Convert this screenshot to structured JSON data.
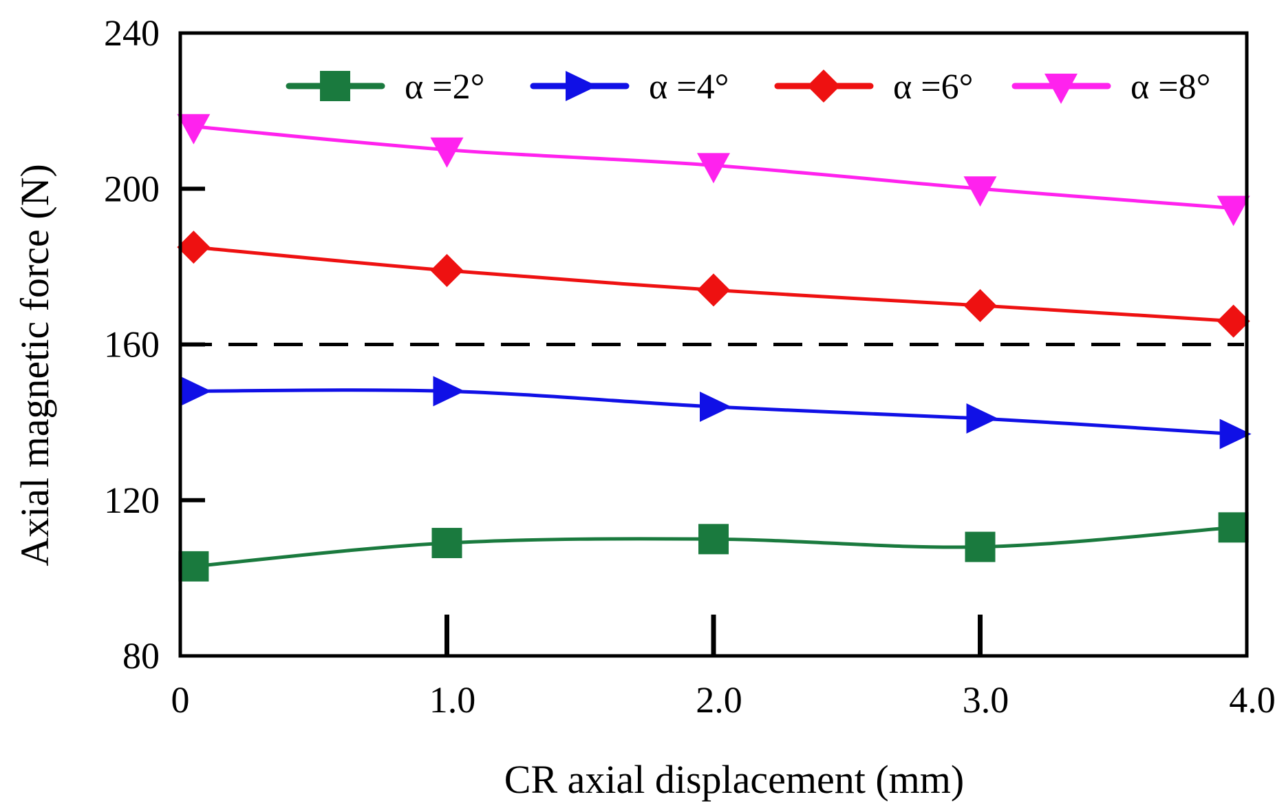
{
  "chart_data": {
    "type": "line",
    "title": "",
    "xlabel": "CR axial displacement  (mm)",
    "ylabel": "Axial magnetic force  (N)",
    "xlim": [
      0,
      4.0
    ],
    "ylim": [
      80,
      240
    ],
    "x_ticks": [
      0,
      1.0,
      2.0,
      3.0,
      4.0
    ],
    "x_tick_labels": [
      "0",
      "1.0",
      "2.0",
      "3.0",
      "4.0"
    ],
    "y_ticks": [
      80,
      120,
      160,
      200,
      240
    ],
    "y_tick_labels": [
      "80",
      "120",
      "160",
      "200",
      "240"
    ],
    "grid": false,
    "legend_position": "top",
    "reference_line": {
      "y": 160,
      "style": "dashed"
    },
    "series": [
      {
        "name": "α =2°",
        "color": "#1a7a3e",
        "marker": "square",
        "x": [
          0.05,
          1.0,
          2.0,
          3.0,
          3.95
        ],
        "values": [
          103,
          109,
          110,
          108,
          113
        ]
      },
      {
        "name": "α =4°",
        "color": "#1010e6",
        "marker": "triangle-right",
        "x": [
          0.05,
          1.0,
          2.0,
          3.0,
          3.95
        ],
        "values": [
          148,
          148,
          144,
          141,
          137
        ]
      },
      {
        "name": "α =6°",
        "color": "#ee1111",
        "marker": "diamond",
        "x": [
          0.05,
          1.0,
          2.0,
          3.0,
          3.95
        ],
        "values": [
          185,
          179,
          174,
          170,
          166
        ]
      },
      {
        "name": "α =8°",
        "color": "#ff22ee",
        "marker": "triangle-down",
        "x": [
          0.05,
          1.0,
          2.0,
          3.0,
          3.95
        ],
        "values": [
          216,
          210,
          206,
          200,
          195
        ]
      }
    ]
  }
}
